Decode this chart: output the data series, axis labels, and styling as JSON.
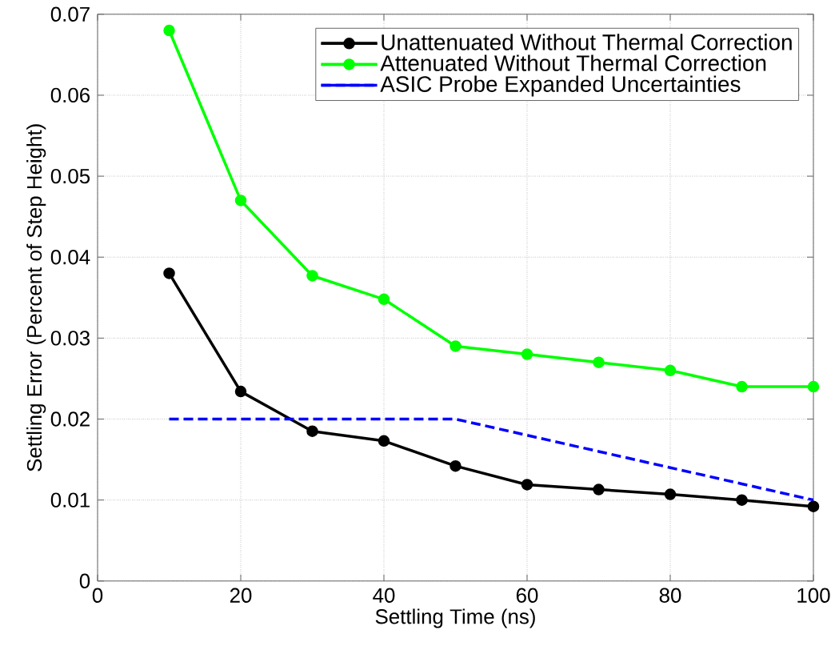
{
  "chart_data": {
    "type": "line",
    "xlabel": "Settling Time (ns)",
    "ylabel": "Settling Error (Percent of Step Height)",
    "x": [
      10,
      20,
      30,
      40,
      50,
      60,
      70,
      80,
      90,
      100
    ],
    "series": [
      {
        "name": "Unattenuated Without Thermal Correction",
        "color": "#000000",
        "marker": "circle",
        "line_style": "solid",
        "values": [
          0.038,
          0.0234,
          0.0185,
          0.0173,
          0.0142,
          0.0119,
          0.0113,
          0.0107,
          0.01,
          0.0092
        ]
      },
      {
        "name": "Attenuated Without Thermal Correction",
        "color": "#00ff00",
        "marker": "circle",
        "line_style": "solid",
        "values": [
          0.068,
          0.047,
          0.0377,
          0.0348,
          0.029,
          0.028,
          0.027,
          0.026,
          0.024,
          0.024
        ]
      },
      {
        "name": "ASIC Probe Expanded Uncertainties",
        "color": "#0000ff",
        "marker": "none",
        "line_style": "dashed",
        "values": [
          0.02,
          0.02,
          0.02,
          0.02,
          0.02,
          0.018,
          0.016,
          0.014,
          0.012,
          0.01
        ]
      }
    ],
    "xlim": [
      0,
      100
    ],
    "ylim": [
      0,
      0.07
    ],
    "xticks": [
      0,
      20,
      40,
      60,
      80,
      100
    ],
    "yticks": [
      0,
      0.01,
      0.02,
      0.03,
      0.04,
      0.05,
      0.06,
      0.07
    ],
    "grid": true,
    "legend": "top right"
  }
}
